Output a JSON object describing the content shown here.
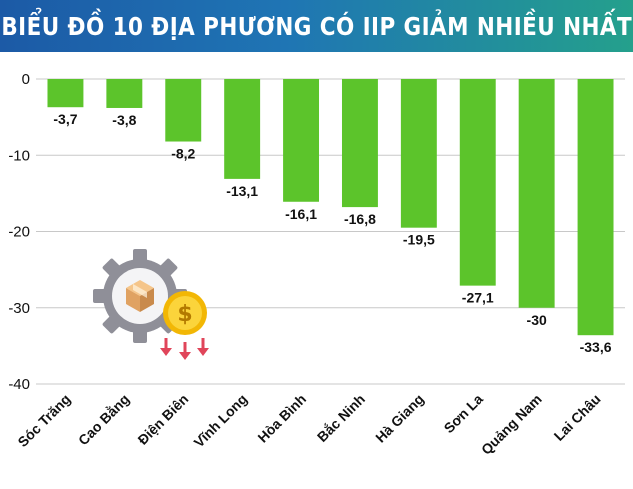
{
  "title": "BIỂU ĐỒ 10 ĐỊA PHƯƠNG CÓ IIP GIẢM NHIỀU NHẤT",
  "colors": {
    "bar": "#5cc42b",
    "grid": "#c8c8c8",
    "banner_start": "#1c5aa6",
    "banner_end": "#24a08c"
  },
  "decoration_icon": "gear-with-box-and-coin-down-arrows-icon",
  "chart_data": {
    "type": "bar",
    "title": "BIỂU ĐỒ 10 ĐỊA PHƯƠNG CÓ IIP GIẢM NHIỀU NHẤT",
    "categories": [
      "Sóc Trăng",
      "Cao Bằng",
      "Điện Biên",
      "Vĩnh Long",
      "Hòa Bình",
      "Bắc Ninh",
      "Hà Giang",
      "Sơn La",
      "Quảng Nam",
      "Lai Châu"
    ],
    "values": [
      -3.7,
      -3.8,
      -8.2,
      -13.1,
      -16.1,
      -16.8,
      -19.5,
      -27.1,
      -30,
      -33.6
    ],
    "value_labels": [
      "-3,7",
      "-3,8",
      "-8,2",
      "-13,1",
      "-16,1",
      "-16,8",
      "-19,5",
      "-27,1",
      "-30",
      "-33,6"
    ],
    "yticks": [
      0,
      -10,
      -20,
      -30,
      -40
    ],
    "ytick_labels": [
      "0",
      "-10",
      "-20",
      "-30",
      "-40"
    ],
    "ylim": [
      -40,
      0
    ],
    "xlabel": "",
    "ylabel": "",
    "grid": true,
    "legend": "none"
  }
}
